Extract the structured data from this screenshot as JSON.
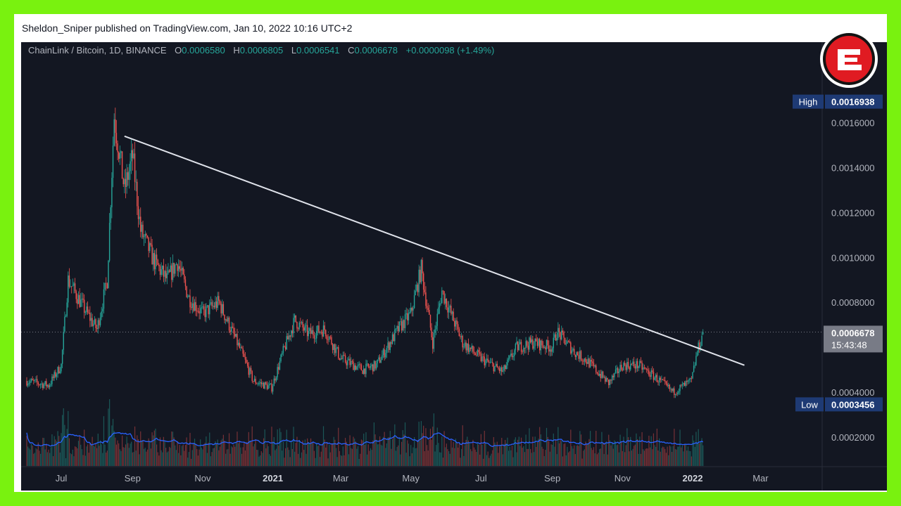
{
  "header": {
    "publish_line": "Sheldon_Sniper published on TradingView.com, Jan 10, 2022 10:16 UTC+2"
  },
  "legend": {
    "symbol": "ChainLink / Bitcoin, 1D, BINANCE",
    "o_label": "O",
    "o_value": "0.0006580",
    "h_label": "H",
    "h_value": "0.0006805",
    "l_label": "L",
    "l_value": "0.0006541",
    "c_label": "C",
    "c_value": "0.0006678",
    "change": "+0.0000098 (+1.49%)"
  },
  "badges": {
    "high_label": "High",
    "high_value": "0.0016938",
    "low_label": "Low",
    "low_value": "0.0003456",
    "last_value": "0.0006678",
    "countdown": "15:43:48"
  },
  "colors": {
    "up": "#26a69a",
    "down": "#ef5350",
    "volume_ma": "#2962ff",
    "trendline": "#e0e3eb",
    "background": "#131722",
    "border": "#79f20f"
  },
  "logo": {
    "icon": "e-brand-logo-icon"
  },
  "chart_data": {
    "type": "candlestick",
    "title": "ChainLink / Bitcoin, 1D, BINANCE",
    "y_ticks": [
      "0.0002000",
      "0.0004000",
      "0.0006000",
      "0.0008000",
      "0.0010000",
      "0.0012000",
      "0.0014000",
      "0.0016000"
    ],
    "y_tick_values": [
      0.0002,
      0.0004,
      0.0006,
      0.0008,
      0.001,
      0.0012,
      0.0014,
      0.0016
    ],
    "x_ticks": [
      "Jul",
      "Sep",
      "Nov",
      "2021",
      "Mar",
      "May",
      "Jul",
      "Sep",
      "Nov",
      "2022",
      "Mar"
    ],
    "x_tick_dates": [
      "2020-07-01",
      "2020-09-01",
      "2020-11-01",
      "2021-01-01",
      "2021-03-01",
      "2021-05-01",
      "2021-07-01",
      "2021-09-01",
      "2021-11-01",
      "2022-01-01",
      "2022-03-01"
    ],
    "price_path": [
      [
        "2020-06-01",
        0.00045
      ],
      [
        "2020-06-20",
        0.00043
      ],
      [
        "2020-07-01",
        0.00052
      ],
      [
        "2020-07-07",
        0.0009
      ],
      [
        "2020-07-20",
        0.00078
      ],
      [
        "2020-08-01",
        0.00068
      ],
      [
        "2020-08-10",
        0.0009
      ],
      [
        "2020-08-16",
        0.00163
      ],
      [
        "2020-08-25",
        0.0013
      ],
      [
        "2020-09-01",
        0.00145
      ],
      [
        "2020-09-08",
        0.00112
      ],
      [
        "2020-09-20",
        0.00098
      ],
      [
        "2020-10-01",
        0.0009
      ],
      [
        "2020-10-10",
        0.00098
      ],
      [
        "2020-10-20",
        0.00082
      ],
      [
        "2020-11-01",
        0.00075
      ],
      [
        "2020-11-15",
        0.0008
      ],
      [
        "2020-12-01",
        0.00062
      ],
      [
        "2020-12-15",
        0.00045
      ],
      [
        "2020-12-31",
        0.00042
      ],
      [
        "2021-01-10",
        0.00058
      ],
      [
        "2021-01-20",
        0.00072
      ],
      [
        "2021-02-01",
        0.00066
      ],
      [
        "2021-02-15",
        0.00068
      ],
      [
        "2021-03-01",
        0.00055
      ],
      [
        "2021-03-20",
        0.0005
      ],
      [
        "2021-04-01",
        0.00052
      ],
      [
        "2021-04-20",
        0.00068
      ],
      [
        "2021-05-01",
        0.00075
      ],
      [
        "2021-05-10",
        0.00095
      ],
      [
        "2021-05-20",
        0.00062
      ],
      [
        "2021-05-28",
        0.00085
      ],
      [
        "2021-06-15",
        0.00062
      ],
      [
        "2021-07-01",
        0.00055
      ],
      [
        "2021-07-20",
        0.00049
      ],
      [
        "2021-08-01",
        0.0006
      ],
      [
        "2021-08-15",
        0.00062
      ],
      [
        "2021-09-01",
        0.0006
      ],
      [
        "2021-09-05",
        0.00067
      ],
      [
        "2021-09-20",
        0.00058
      ],
      [
        "2021-10-01",
        0.00054
      ],
      [
        "2021-10-20",
        0.00044
      ],
      [
        "2021-11-01",
        0.00052
      ],
      [
        "2021-11-15",
        0.00052
      ],
      [
        "2021-12-01",
        0.00046
      ],
      [
        "2021-12-15",
        0.0004
      ],
      [
        "2021-12-31",
        0.00045
      ],
      [
        "2022-01-05",
        0.00058
      ],
      [
        "2022-01-10",
        0.00066
      ]
    ],
    "last_price": 0.0006678,
    "trendline": [
      [
        "2020-08-25",
        0.00154
      ],
      [
        "2022-02-15",
        0.00052
      ]
    ],
    "series": [
      {
        "type": "volume",
        "color_by": "candle direction"
      },
      {
        "type": "volume moving average",
        "color": "#2962ff"
      }
    ]
  }
}
